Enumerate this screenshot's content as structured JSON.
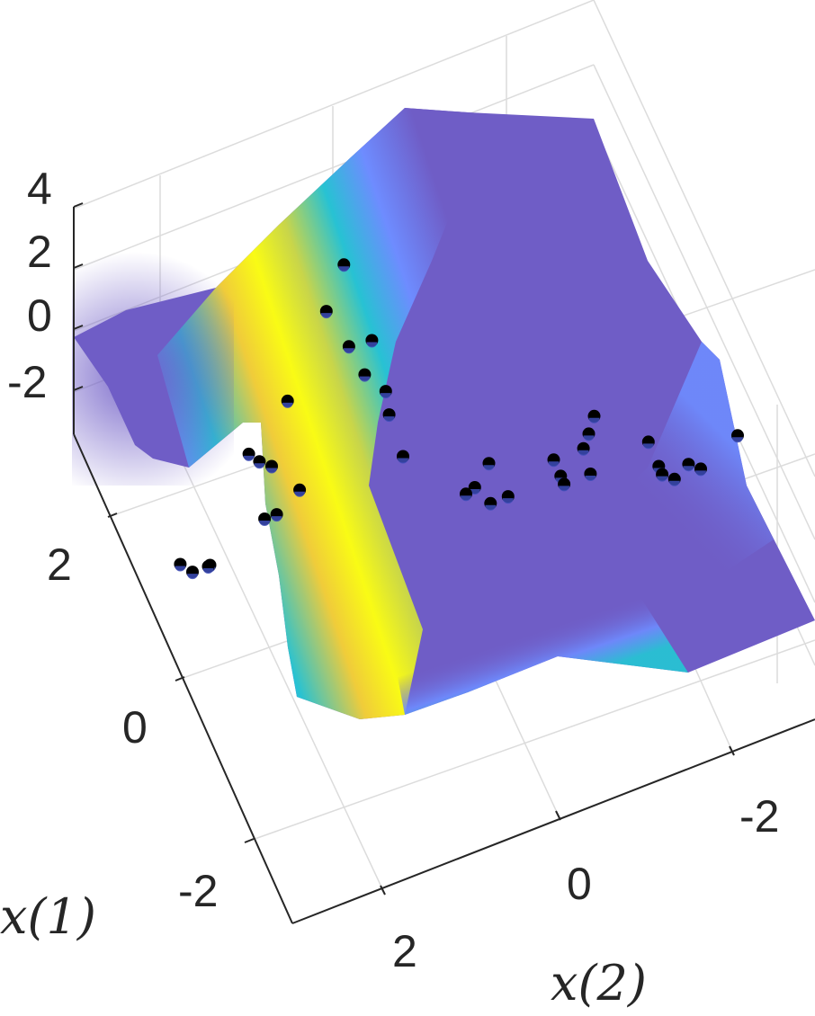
{
  "chart_data": {
    "type": "surface",
    "xlabel": "x(1)",
    "ylabel": "x(2)",
    "zlabel": "",
    "x1_ticks": [
      "2",
      "0",
      "-2"
    ],
    "x2_ticks": [
      "2",
      "0",
      "-2"
    ],
    "z_ticks": [
      "4",
      "2",
      "0",
      "-2"
    ],
    "zlim": [
      -3,
      4
    ],
    "colormap": [
      "#3e26a8",
      "#6f5dc6",
      "#6e8cff",
      "#27c2d3",
      "#7fd58f",
      "#f0cc3a",
      "#f9fb15"
    ],
    "surface_colors": {
      "low": "#6f5dc6",
      "mid_low": "#6e8cff",
      "mid": "#27c2d3",
      "mid_high": "#a8d060",
      "high": "#f7f245"
    },
    "point_color": "#000000",
    "points": [
      {
        "x1": 1.1,
        "x2": 3.1,
        "z": -1.8
      },
      {
        "x1": 1.0,
        "x2": 3.0,
        "z": -1.9
      },
      {
        "x1": 1.0,
        "x2": 2.8,
        "z": -1.9
      },
      {
        "x1": 0.8,
        "x2": 2.9,
        "z": -1.3
      },
      {
        "x1": 1.4,
        "x2": 2.2,
        "z": 0.0
      },
      {
        "x1": 1.2,
        "x2": 2.1,
        "z": -1.7
      },
      {
        "x1": 1.1,
        "x2": 2.0,
        "z": -1.4
      },
      {
        "x1": 1.6,
        "x2": 2.0,
        "z": -1.0
      },
      {
        "x1": 1.5,
        "x2": 1.9,
        "z": -1.0
      },
      {
        "x1": 1.2,
        "x2": 1.7,
        "z": -1.2
      },
      {
        "x1": 1.8,
        "x2": 1.6,
        "z": 0.0
      },
      {
        "x1": 2.2,
        "x2": 1.0,
        "z": 1.2
      },
      {
        "x1": 2.2,
        "x2": 0.8,
        "z": 2.5
      },
      {
        "x1": 1.8,
        "x2": 0.9,
        "z": 1.0
      },
      {
        "x1": 1.6,
        "x2": 0.8,
        "z": 0.5
      },
      {
        "x1": 1.9,
        "x2": 0.6,
        "z": 0.6
      },
      {
        "x1": 1.5,
        "x2": 0.6,
        "z": 0.0
      },
      {
        "x1": 1.4,
        "x2": 0.6,
        "z": -0.5
      },
      {
        "x1": 1.0,
        "x2": 0.6,
        "z": -0.8
      },
      {
        "x1": 0.8,
        "x2": -0.3,
        "z": -1.5
      },
      {
        "x1": 0.7,
        "x2": -0.1,
        "z": -1.8
      },
      {
        "x1": 0.7,
        "x2": 0.0,
        "z": -1.9
      },
      {
        "x1": 0.5,
        "x2": -0.2,
        "z": -1.9
      },
      {
        "x1": 0.5,
        "x2": -0.4,
        "z": -1.9
      },
      {
        "x1": 0.7,
        "x2": -1.0,
        "z": -1.9
      },
      {
        "x1": 0.5,
        "x2": -1.0,
        "z": -1.9
      },
      {
        "x1": 0.4,
        "x2": -1.0,
        "z": -1.9
      },
      {
        "x1": 0.6,
        "x2": -1.3,
        "z": -1.6
      },
      {
        "x1": 0.7,
        "x2": -1.4,
        "z": -1.5
      },
      {
        "x1": 0.8,
        "x2": -1.5,
        "z": -1.3
      },
      {
        "x1": 0.4,
        "x2": -1.3,
        "z": -1.9
      },
      {
        "x1": 0.5,
        "x2": -2.0,
        "z": -1.9
      },
      {
        "x1": 0.2,
        "x2": -2.0,
        "z": -1.9
      },
      {
        "x1": 0.1,
        "x2": -2.0,
        "z": -1.9
      },
      {
        "x1": 0.1,
        "x2": -2.3,
        "z": -1.9
      },
      {
        "x1": 0.0,
        "x2": -2.1,
        "z": -1.9
      },
      {
        "x1": 0.0,
        "x2": -2.4,
        "z": -1.9
      },
      {
        "x1": 0.2,
        "x2": -2.9,
        "z": -1.9
      }
    ]
  }
}
